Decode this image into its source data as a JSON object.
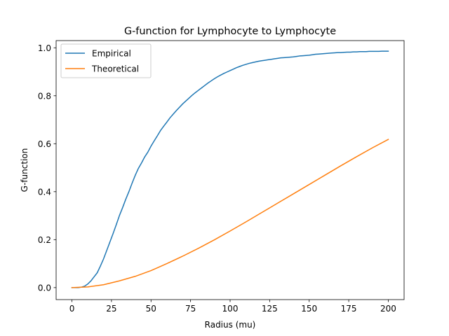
{
  "chart_data": {
    "type": "line",
    "title": "G-function for Lymphocyte to Lymphocyte",
    "xlabel": "Radius (mu)",
    "ylabel": "G-function",
    "xlim": [
      -10,
      210
    ],
    "ylim": [
      -0.05,
      1.03
    ],
    "xticks": [
      0,
      25,
      50,
      75,
      100,
      125,
      150,
      175,
      200
    ],
    "yticks": [
      0.0,
      0.2,
      0.4,
      0.6,
      0.8,
      1.0
    ],
    "grid": false,
    "legend_position": "upper-left",
    "series": [
      {
        "name": "Empirical",
        "color": "#1f77b4",
        "x": [
          0,
          2,
          4,
          6,
          8,
          10,
          12,
          14,
          16,
          18,
          20,
          22,
          24,
          26,
          28,
          30,
          32,
          34,
          36,
          38,
          40,
          42,
          44,
          46,
          48,
          50,
          52,
          54,
          56,
          58,
          60,
          62,
          64,
          66,
          68,
          70,
          72,
          74,
          76,
          78,
          80,
          82,
          84,
          86,
          88,
          90,
          92,
          94,
          96,
          98,
          100,
          102,
          104,
          106,
          108,
          110,
          112,
          114,
          116,
          118,
          120,
          122,
          124,
          126,
          128,
          130,
          132,
          134,
          136,
          138,
          140,
          142,
          144,
          146,
          148,
          150,
          152,
          154,
          156,
          158,
          160,
          162,
          164,
          166,
          168,
          170,
          172,
          174,
          176,
          178,
          180,
          182,
          184,
          186,
          188,
          190,
          192,
          194,
          196,
          198,
          200
        ],
        "y": [
          0.0,
          0.0,
          0.0,
          0.002,
          0.006,
          0.015,
          0.028,
          0.045,
          0.062,
          0.09,
          0.12,
          0.155,
          0.19,
          0.225,
          0.262,
          0.3,
          0.333,
          0.368,
          0.4,
          0.435,
          0.468,
          0.497,
          0.52,
          0.545,
          0.565,
          0.59,
          0.612,
          0.633,
          0.655,
          0.673,
          0.69,
          0.708,
          0.723,
          0.738,
          0.752,
          0.766,
          0.778,
          0.79,
          0.802,
          0.813,
          0.823,
          0.833,
          0.843,
          0.853,
          0.862,
          0.871,
          0.879,
          0.886,
          0.893,
          0.899,
          0.905,
          0.911,
          0.917,
          0.922,
          0.927,
          0.931,
          0.935,
          0.938,
          0.941,
          0.944,
          0.946,
          0.948,
          0.95,
          0.952,
          0.954,
          0.956,
          0.958,
          0.959,
          0.96,
          0.961,
          0.962,
          0.964,
          0.966,
          0.967,
          0.968,
          0.969,
          0.971,
          0.973,
          0.974,
          0.975,
          0.976,
          0.977,
          0.978,
          0.979,
          0.98,
          0.98,
          0.981,
          0.982,
          0.982,
          0.983,
          0.983,
          0.984,
          0.984,
          0.984,
          0.985,
          0.985,
          0.985,
          0.985,
          0.986,
          0.986,
          0.986
        ]
      },
      {
        "name": "Theoretical",
        "color": "#ff7f0e",
        "x": [
          0,
          10,
          20,
          30,
          40,
          50,
          60,
          70,
          80,
          90,
          100,
          110,
          120,
          130,
          140,
          150,
          160,
          170,
          180,
          190,
          200
        ],
        "y": [
          0.0,
          0.003,
          0.012,
          0.028,
          0.047,
          0.071,
          0.1,
          0.131,
          0.164,
          0.199,
          0.236,
          0.274,
          0.313,
          0.352,
          0.391,
          0.43,
          0.469,
          0.508,
          0.546,
          0.583,
          0.618
        ]
      }
    ]
  }
}
